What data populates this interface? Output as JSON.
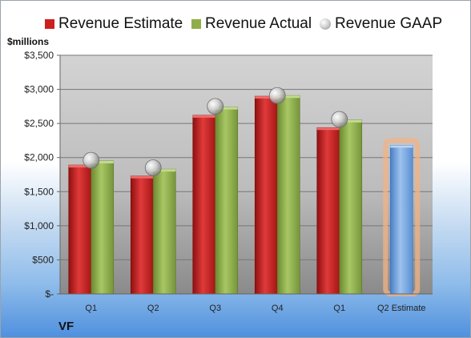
{
  "legend": {
    "estimate": "Revenue Estimate",
    "actual": "Revenue Actual",
    "gaap": "Revenue GAAP"
  },
  "unit_label": "$millions",
  "company": "VF",
  "colors": {
    "estimate": "#cc1f1f",
    "actual": "#8fae4a",
    "gaap": "#b5b5b5",
    "forecast": "#6f9fd8",
    "forecast_glow": "#f4b183",
    "plot_bg_top": "#d0d0d0",
    "plot_bg_bottom": "#8c8c8c"
  },
  "chart_data": {
    "type": "bar",
    "categories": [
      "Q1",
      "Q2",
      "Q3",
      "Q4",
      "Q1",
      "Q2 Estimate"
    ],
    "series": [
      {
        "name": "Revenue Estimate",
        "values": [
          1890,
          1730,
          2620,
          2900,
          2440,
          2180
        ]
      },
      {
        "name": "Revenue Actual",
        "values": [
          1950,
          1830,
          2740,
          2910,
          2550,
          null
        ]
      },
      {
        "name": "Revenue GAAP",
        "values": [
          1960,
          1850,
          2750,
          2910,
          2560,
          null
        ]
      }
    ],
    "ylim": [
      0,
      3500
    ],
    "yticks": [
      0,
      500,
      1000,
      1500,
      2000,
      2500,
      3000,
      3500
    ],
    "ytick_labels": [
      "$-",
      "$500",
      "$1,000",
      "$1,500",
      "$2,000",
      "$2,500",
      "$3,000",
      "$3,500"
    ],
    "grid": true,
    "legend_position": "top"
  }
}
